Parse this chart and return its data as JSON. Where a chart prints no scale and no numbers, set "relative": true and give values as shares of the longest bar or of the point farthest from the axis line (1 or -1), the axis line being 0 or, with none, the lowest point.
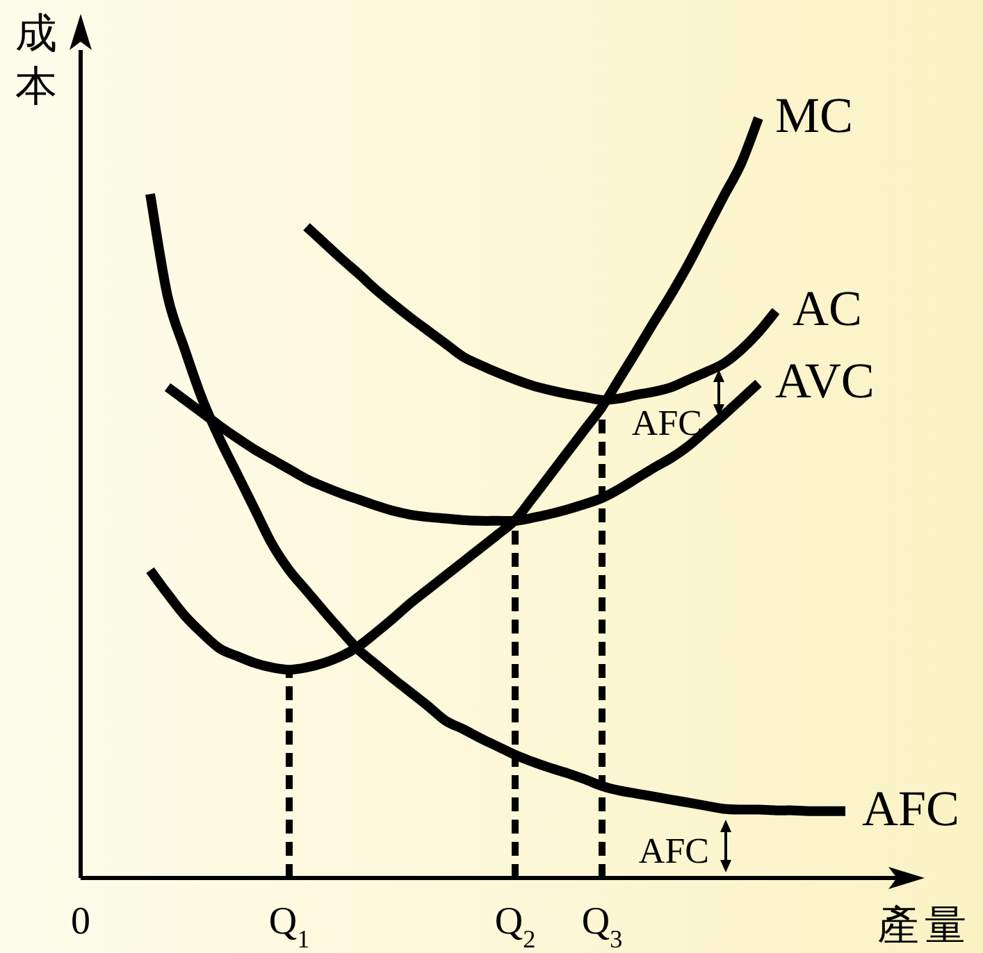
{
  "chart_data": {
    "type": "line",
    "relative": true,
    "xlabel": "產量",
    "ylabel": "成本",
    "categories": [
      "0",
      null,
      null,
      null,
      null,
      null,
      null,
      null,
      null,
      null,
      null,
      null,
      "Q$_{1}$",
      null,
      null,
      null,
      null,
      null,
      null,
      null,
      null,
      null,
      null,
      null,
      null,
      "Q$_{2}$",
      null,
      null,
      null,
      null,
      "Q$_{3}$",
      null,
      null,
      null,
      null,
      null,
      null,
      null,
      null,
      null,
      null,
      null,
      null,
      null,
      null,
      null,
      null,
      null,
      null
    ],
    "marker": "none",
    "line_style": "solid",
    "series": [
      {
        "name": "MC",
        "color": "#000000",
        "values": [
          null,
          null,
          null,
          null,
          0.405,
          0.374,
          0.345,
          0.322,
          0.302,
          0.292,
          0.283,
          0.277,
          0.274,
          0.277,
          0.283,
          0.292,
          0.305,
          0.323,
          0.342,
          0.362,
          0.38,
          0.398,
          0.416,
          0.434,
          0.452,
          0.471,
          0.5,
          0.53,
          0.56,
          0.59,
          0.62,
          0.657,
          0.694,
          0.732,
          0.769,
          0.809,
          0.853,
          0.897,
          0.94,
          1.0,
          null,
          null,
          null,
          null,
          null,
          null,
          null,
          null,
          null
        ]
      },
      {
        "name": "AC",
        "color": "#000000",
        "values": [
          null,
          null,
          null,
          null,
          null,
          null,
          null,
          null,
          null,
          null,
          null,
          null,
          null,
          0.857,
          0.836,
          0.815,
          0.795,
          0.774,
          0.755,
          0.737,
          0.72,
          0.703,
          0.686,
          0.675,
          0.665,
          0.656,
          0.648,
          0.642,
          0.637,
          0.633,
          0.629,
          0.631,
          0.636,
          0.64,
          0.646,
          0.656,
          0.666,
          0.677,
          0.695,
          0.718,
          0.746,
          null,
          null,
          null,
          null,
          null,
          null,
          null,
          null
        ]
      },
      {
        "name": "AVC",
        "color": "#000000",
        "values": [
          null,
          null,
          null,
          null,
          null,
          0.646,
          0.629,
          0.612,
          0.595,
          0.579,
          0.564,
          0.551,
          0.538,
          0.525,
          0.515,
          0.506,
          0.498,
          0.49,
          0.483,
          0.478,
          0.475,
          0.473,
          0.471,
          0.47,
          0.47,
          0.47,
          0.474,
          0.479,
          0.485,
          0.492,
          0.5,
          0.512,
          0.526,
          0.54,
          0.553,
          0.569,
          0.589,
          0.609,
          0.63,
          0.651,
          null,
          null,
          null,
          null,
          null,
          null,
          null,
          null,
          null
        ]
      },
      {
        "name": "AFC",
        "color": "#000000",
        "values": [
          null,
          null,
          null,
          null,
          0.9,
          0.766,
          0.695,
          0.63,
          0.578,
          0.532,
          0.486,
          0.44,
          0.405,
          0.378,
          0.351,
          0.325,
          0.3,
          0.281,
          0.262,
          0.244,
          0.226,
          0.207,
          0.196,
          0.184,
          0.173,
          0.162,
          0.153,
          0.145,
          0.138,
          0.13,
          0.121,
          0.115,
          0.111,
          0.107,
          0.103,
          0.099,
          0.095,
          0.091,
          0.09,
          0.09,
          0.089,
          0.089,
          0.088,
          0.088,
          0.088,
          null,
          null,
          null,
          null
        ]
      }
    ],
    "ref_lines": [
      {
        "axis": "x",
        "value": "Q$_{1}$",
        "color": "#000000",
        "line_style": "dashed"
      },
      {
        "axis": "x",
        "value": "Q$_{2}$",
        "color": "#000000",
        "line_style": "dashed"
      },
      {
        "axis": "x",
        "value": "Q$_{3}$",
        "color": "#000000",
        "line_style": "dashed"
      }
    ],
    "annotations": [
      "AFC",
      "AFC"
    ]
  }
}
